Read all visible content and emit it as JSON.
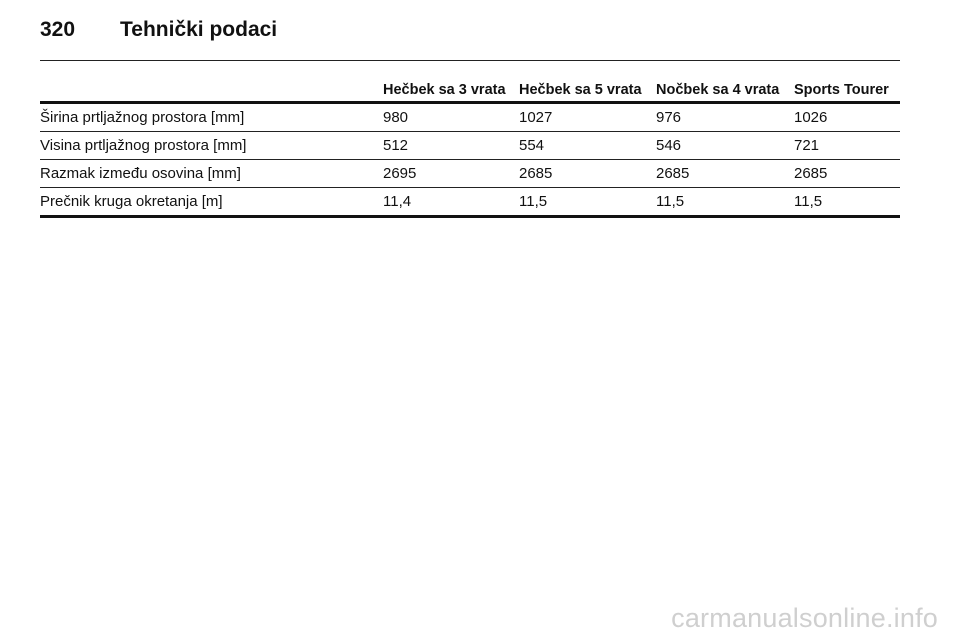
{
  "header": {
    "page_number": "320",
    "section_title": "Tehnički podaci"
  },
  "table": {
    "columns": [
      "",
      "Hečbek sa 3 vrata",
      "Hečbek sa 5 vrata",
      "Nočbek sa 4 vrata",
      "Sports Tourer"
    ],
    "rows": [
      [
        "Širina prtljažnog prostora [mm]",
        "980",
        "1027",
        "976",
        "1026"
      ],
      [
        "Visina prtljažnog prostora [mm]",
        "512",
        "554",
        "546",
        "721"
      ],
      [
        "Razmak između osovina [mm]",
        "2695",
        "2685",
        "2685",
        "2685"
      ],
      [
        "Prečnik kruga okretanja [m]",
        "11,4",
        "11,5",
        "11,5",
        "11,5"
      ]
    ]
  },
  "watermark": {
    "text": "carmanualsonline.info"
  }
}
